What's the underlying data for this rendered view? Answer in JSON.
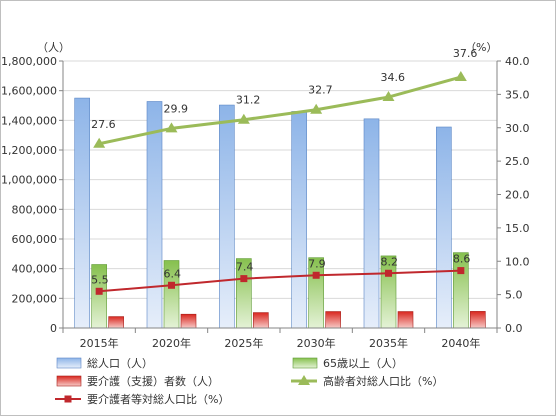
{
  "chart_data": {
    "type": "bar",
    "categories": [
      "2015年",
      "2020年",
      "2025年",
      "2030年",
      "2035年",
      "2040年"
    ],
    "y_left": {
      "unit_label": "（人）",
      "min": 0,
      "max": 1800000,
      "step": 200000,
      "tick_labels": [
        "0",
        "200,000",
        "400,000",
        "600,000",
        "800,000",
        "1,000,000",
        "1,200,000",
        "1,400,000",
        "1,600,000",
        "1,800,000"
      ]
    },
    "y_right": {
      "unit_label": "（%）",
      "min": 0,
      "max": 40,
      "step": 5,
      "tick_labels": [
        "0.0",
        "5.0",
        "10.0",
        "15.0",
        "20.0",
        "25.0",
        "30.0",
        "35.0",
        "40.0"
      ]
    },
    "series": [
      {
        "name": "総人口（人）",
        "kind": "bar",
        "axis": "left",
        "color": "#7fa6dc",
        "values": [
          1550000,
          1527000,
          1503000,
          1460000,
          1410000,
          1355000
        ]
      },
      {
        "name": "65歳以上（人）",
        "kind": "bar",
        "axis": "left",
        "color": "#8fc65a",
        "values": [
          428000,
          455000,
          468000,
          474000,
          486000,
          508000
        ]
      },
      {
        "name": "要介護（支援）者数（人）",
        "kind": "bar",
        "axis": "left",
        "color": "#e0423a",
        "values": [
          77000,
          93000,
          104000,
          111000,
          111000,
          112000
        ]
      },
      {
        "name": "高齢者対総人口比（%）",
        "kind": "line",
        "axis": "right",
        "color": "#9bbb59",
        "values": [
          27.6,
          29.9,
          31.2,
          32.7,
          34.6,
          37.6
        ],
        "labels": [
          "27.6",
          "29.9",
          "31.2",
          "32.7",
          "34.6",
          "37.6"
        ]
      },
      {
        "name": "要介護者等対総人口比（%）",
        "kind": "line",
        "axis": "right",
        "color": "#c0282d",
        "values": [
          5.5,
          6.4,
          7.4,
          7.9,
          8.2,
          8.6
        ],
        "labels": [
          "5.5",
          "6.4",
          "7.4",
          "7.9",
          "8.2",
          "8.6"
        ]
      }
    ],
    "grid": true,
    "legend_position": "bottom"
  }
}
